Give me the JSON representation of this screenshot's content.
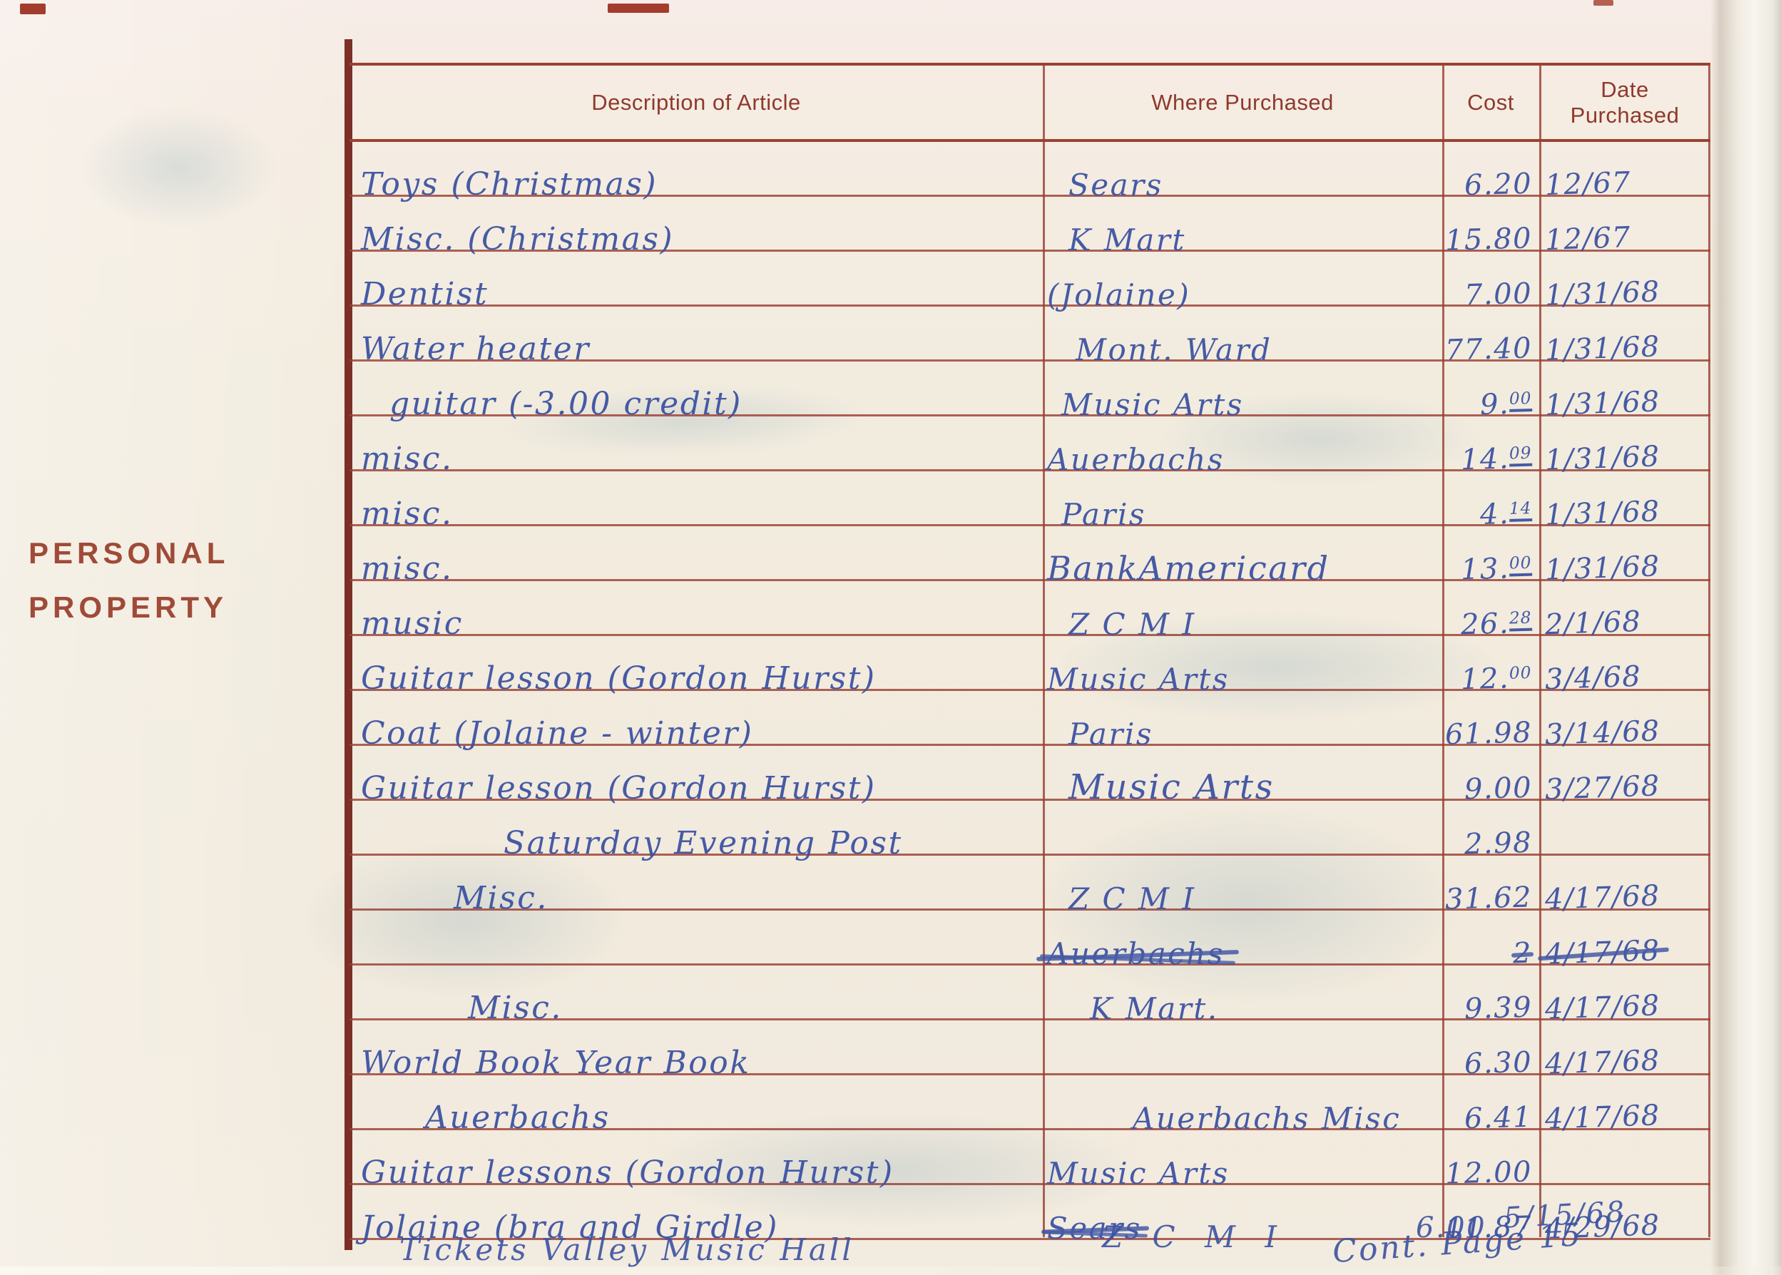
{
  "colors": {
    "ink": "#3c52a2",
    "rule": "#9a4133",
    "header_text": "#8e3a2c",
    "thick_border": "#7b2f26",
    "label": "#a04a38",
    "paper": "#f2ecdf"
  },
  "page": {
    "side_label_line1": "PERSONAL",
    "side_label_line2": "PROPERTY"
  },
  "table": {
    "headers": {
      "description": "Description of Article",
      "where": "Where Purchased",
      "cost": "Cost",
      "date": "Date Purchased"
    },
    "rows": [
      {
        "description": "Toys (Christmas)",
        "where": "Sears",
        "where_indent": 30,
        "cost": "6.20",
        "date": "12/67"
      },
      {
        "description": "Misc. (Christmas)",
        "where": "K Mart",
        "where_indent": 30,
        "cost": "15.80",
        "date": "12/67"
      },
      {
        "description": "Dentist",
        "where": "(Jolaine)",
        "cost": "7.00",
        "date": "1/31/68"
      },
      {
        "description": "Water heater",
        "where": "Mont. Ward",
        "where_indent": 40,
        "cost": "77.40",
        "date": "1/31/68"
      },
      {
        "description": "guitar (-3.00 credit)",
        "desc_indent": 40,
        "where": "Music Arts",
        "where_indent": 20,
        "cost": "9.00",
        "cost_raised": true,
        "cost_underline": true,
        "date": "1/31/68"
      },
      {
        "description": "misc.",
        "where": "Auerbachs",
        "cost": "14.09",
        "cost_raised": true,
        "cost_underline": true,
        "date": "1/31/68"
      },
      {
        "description": "misc.",
        "where": "Paris",
        "where_indent": 20,
        "cost": "4.14",
        "cost_raised": true,
        "cost_underline": true,
        "date": "1/31/68"
      },
      {
        "description": "misc.",
        "where": "BankAmericard",
        "where_size": 46,
        "cost": "13.00",
        "cost_raised": true,
        "cost_underline": true,
        "date": "1/31/68"
      },
      {
        "description": "music",
        "where": "Z C M I",
        "where_indent": 30,
        "cost": "26.28",
        "cost_raised": true,
        "cost_underline": true,
        "date": "2/1/68"
      },
      {
        "description": "Guitar lesson (Gordon Hurst)",
        "where": "Music Arts",
        "cost": "12.00",
        "cost_raised": true,
        "date": "3/4/68"
      },
      {
        "description": "Coat (Jolaine - winter)",
        "where": "Paris",
        "where_indent": 30,
        "cost": "61.98",
        "date": "3/14/68"
      },
      {
        "description": "Guitar lesson (Gordon Hurst)",
        "where": "Music Arts",
        "where_size": 48,
        "where_indent": 30,
        "cost": "9.00",
        "date": "3/27/68"
      },
      {
        "description": "Saturday Evening Post",
        "desc_indent": 200,
        "where": "",
        "cost": "2.98",
        "date": ""
      },
      {
        "description": "Misc.",
        "desc_indent": 130,
        "where": "Z C M I",
        "where_indent": 30,
        "cost": "31.62",
        "date": "4/17/68"
      },
      {
        "description": "",
        "where": "Auerbachs",
        "where_struck": true,
        "cost": "2",
        "cost_struck": true,
        "date": "4/17/68",
        "date_struck": true
      },
      {
        "description": "Misc.",
        "desc_indent": 150,
        "where": "K Mart.",
        "where_indent": 60,
        "cost": "9.39",
        "date": "4/17/68"
      },
      {
        "description": "World Book Year Book",
        "where": "",
        "cost": "6.30",
        "date": "4/17/68"
      },
      {
        "description": "Auerbachs",
        "desc_indent": 90,
        "where": "Auerbachs Misc",
        "where_indent": 120,
        "cost": "6.41",
        "date": "4/17/68"
      },
      {
        "description": "Guitar lessons (Gordon Hurst)",
        "where": "Music Arts",
        "cost": "12.00",
        "date": ""
      },
      {
        "description": "Jolaine (bra and Girdle)",
        "where": "Sears",
        "where_struck": true,
        "cost": "11.87",
        "date": "4/29/68"
      }
    ],
    "overflow_row": {
      "description": "Tickets Valley Music Hall",
      "where": "Z C M I",
      "cost": "6.00",
      "date": "5/15/68"
    },
    "continuation_note": "Cont. Page 15"
  }
}
